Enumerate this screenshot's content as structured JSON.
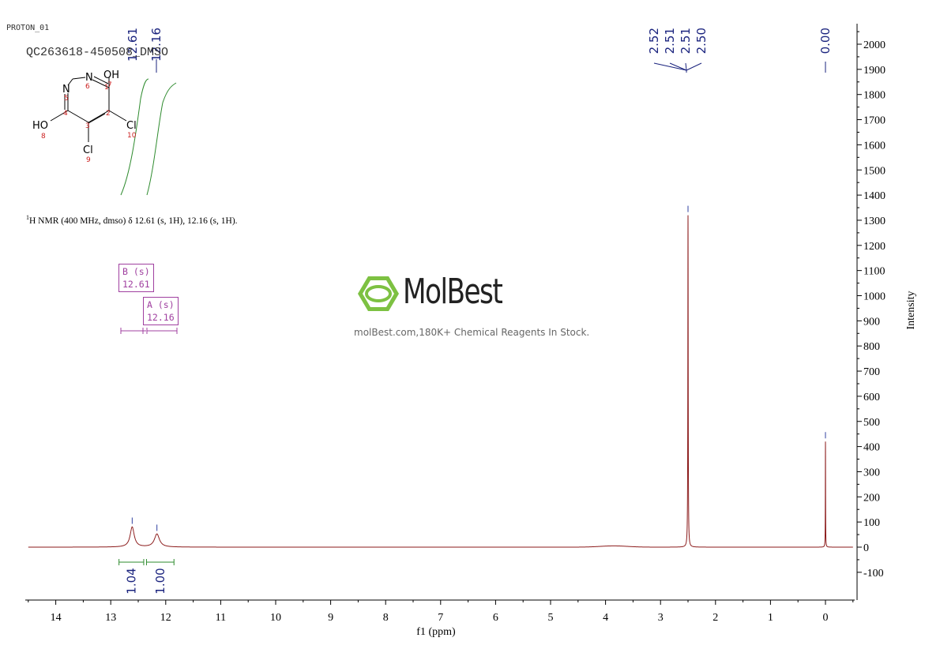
{
  "header": {
    "sample_code": "PROTON_01",
    "sample_name": "QC263618-450508_DMSO"
  },
  "summary": {
    "nucleus_sup": "1",
    "text": "H NMR (400 MHz, dmso) δ 12.61 (s, 1H), 12.16 (s, 1H)."
  },
  "structure": {
    "atoms": [
      {
        "label": "N",
        "num": "6"
      },
      {
        "label": "N",
        "num": "5"
      },
      {
        "label": "OH",
        "num": "7"
      },
      {
        "label": "HO",
        "num": "8"
      },
      {
        "label": "Cl",
        "num": "10"
      },
      {
        "label": "Cl",
        "num": "9"
      }
    ],
    "ring_numbers": [
      "1",
      "2",
      "3",
      "4"
    ]
  },
  "peaks_boxes": [
    {
      "label": "B (s)",
      "value": "12.61"
    },
    {
      "label": "A (s)",
      "value": "12.16"
    }
  ],
  "watermark": {
    "logo": "MolBest",
    "tagline": "molBest.com,180K+ Chemical Reagents In Stock."
  },
  "colors": {
    "spectrum": "#8b1a1a",
    "peak_labels": "#1a237e",
    "integral": "#2e8b2e",
    "box": "#a040a0",
    "logo_green": "#7dc142"
  },
  "chart_data": {
    "type": "line",
    "xlabel": "f1 (ppm)",
    "ylabel": "Intensity",
    "xlim": [
      14.5,
      -0.5
    ],
    "ylim": [
      -200,
      2050
    ],
    "x_reversed": true,
    "x_ticks": [
      14,
      13,
      12,
      11,
      10,
      9,
      8,
      7,
      6,
      5,
      4,
      3,
      2,
      1,
      0
    ],
    "y_ticks": [
      -100,
      0,
      100,
      200,
      300,
      400,
      500,
      600,
      700,
      800,
      900,
      1000,
      1100,
      1200,
      1300,
      1400,
      1500,
      1600,
      1700,
      1800,
      1900,
      2000
    ],
    "peak_labels_left": [
      "12.61",
      "12.16"
    ],
    "peak_labels_right": [
      "2.52",
      "2.51",
      "2.51",
      "2.50"
    ],
    "peak_label_tms": "0.00",
    "integrals": [
      {
        "from": 12.85,
        "to": 12.4,
        "value": "1.04"
      },
      {
        "from": 12.35,
        "to": 11.85,
        "value": "1.00"
      }
    ],
    "peaks": [
      {
        "shift": 12.61,
        "height": 80,
        "width": 0.09
      },
      {
        "shift": 12.16,
        "height": 52,
        "width": 0.11
      },
      {
        "shift": 2.5,
        "height": 1320,
        "width": 0.008
      },
      {
        "shift": 0.0,
        "height": 420,
        "width": 0.005
      }
    ]
  }
}
